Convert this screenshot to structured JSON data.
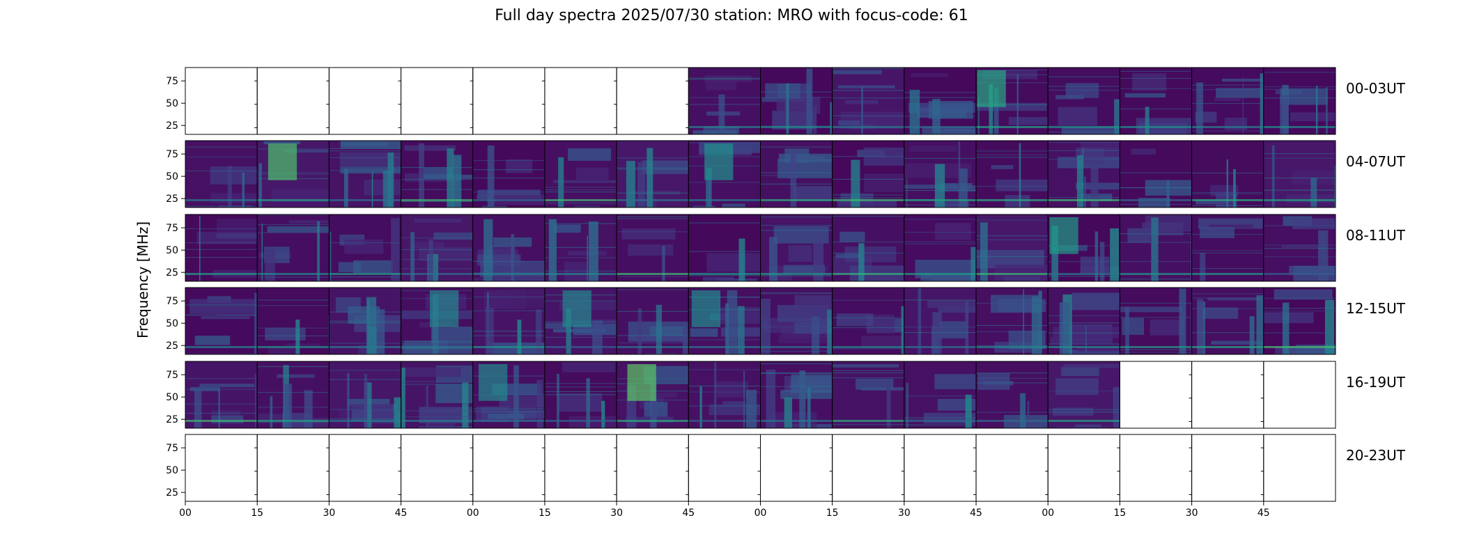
{
  "title": "Full day spectra 2025/07/30 station: MRO with focus-code: 61",
  "chart_data": {
    "type": "heatmap",
    "title": "Full day spectra 2025/07/30 station: MRO with focus-code: 61",
    "ylabel": "Frequency [MHz]",
    "xlabel": "",
    "yticks": [
      "25",
      "50",
      "75"
    ],
    "ylim": [
      15,
      90
    ],
    "xticks": [
      "00",
      "15",
      "30",
      "45",
      "00",
      "15",
      "30",
      "45",
      "00",
      "15",
      "30",
      "45",
      "00",
      "15",
      "30",
      "45"
    ],
    "colormap": "viridis",
    "colors": {
      "low": "#440154",
      "mid": "#2a788e",
      "high": "#fde725"
    },
    "panels_per_row": 16,
    "rows": [
      {
        "label": "00-03UT",
        "has_data": [
          false,
          false,
          false,
          false,
          false,
          false,
          false,
          true,
          true,
          true,
          true,
          true,
          true,
          true,
          true,
          true
        ]
      },
      {
        "label": "04-07UT",
        "has_data": [
          true,
          true,
          true,
          true,
          true,
          true,
          true,
          true,
          true,
          true,
          true,
          true,
          true,
          true,
          true,
          true
        ]
      },
      {
        "label": "08-11UT",
        "has_data": [
          true,
          true,
          true,
          true,
          true,
          true,
          true,
          true,
          true,
          true,
          true,
          true,
          true,
          true,
          true,
          true
        ]
      },
      {
        "label": "12-15UT",
        "has_data": [
          true,
          true,
          true,
          true,
          true,
          true,
          true,
          true,
          true,
          true,
          true,
          true,
          true,
          true,
          true,
          true
        ]
      },
      {
        "label": "16-19UT",
        "has_data": [
          true,
          true,
          true,
          true,
          true,
          true,
          true,
          true,
          true,
          true,
          true,
          true,
          true,
          false,
          false,
          false
        ]
      },
      {
        "label": "20-23UT",
        "has_data": [
          false,
          false,
          false,
          false,
          false,
          false,
          false,
          false,
          false,
          false,
          false,
          false,
          false,
          false,
          false,
          false
        ]
      }
    ]
  }
}
